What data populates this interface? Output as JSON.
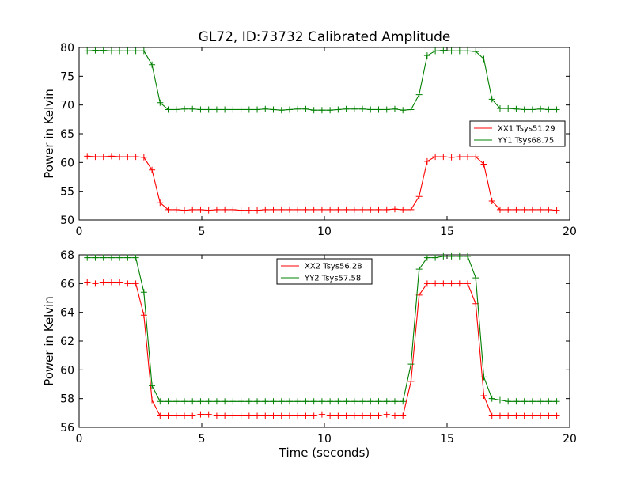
{
  "figure": {
    "title": "GL72, ID:73732 Calibrated Amplitude"
  },
  "chart_data": [
    {
      "type": "line",
      "title": "GL72, ID:73732 Calibrated Amplitude",
      "xlabel": "",
      "ylabel": "Power in Kelvin",
      "xlim": [
        0,
        20
      ],
      "ylim": [
        50,
        80
      ],
      "xticks": [
        0,
        5,
        10,
        15,
        20
      ],
      "yticks": [
        50,
        55,
        60,
        65,
        70,
        75,
        80
      ],
      "grid": false,
      "legend": "right",
      "x": [
        0.33,
        0.66,
        0.99,
        1.32,
        1.65,
        1.98,
        2.31,
        2.64,
        2.97,
        3.3,
        3.63,
        3.96,
        4.29,
        4.62,
        4.95,
        5.28,
        5.61,
        5.94,
        6.27,
        6.6,
        6.93,
        7.26,
        7.59,
        7.92,
        8.25,
        8.58,
        8.91,
        9.24,
        9.57,
        9.9,
        10.23,
        10.56,
        10.89,
        11.22,
        11.55,
        11.88,
        12.21,
        12.54,
        12.87,
        13.2,
        13.53,
        13.86,
        14.19,
        14.52,
        14.85,
        15.18,
        15.51,
        15.84,
        16.17,
        16.5,
        16.83,
        17.16,
        17.49,
        17.82,
        18.15,
        18.48,
        18.81,
        19.14,
        19.47
      ],
      "series": [
        {
          "name": "XX1 Tsys51.29",
          "color": "#ff0000",
          "values": [
            61.1,
            61.0,
            61.0,
            61.1,
            61.0,
            61.0,
            61.0,
            60.9,
            58.7,
            53.0,
            51.8,
            51.8,
            51.7,
            51.8,
            51.8,
            51.7,
            51.8,
            51.8,
            51.8,
            51.7,
            51.7,
            51.7,
            51.8,
            51.8,
            51.8,
            51.8,
            51.8,
            51.8,
            51.8,
            51.8,
            51.8,
            51.8,
            51.8,
            51.8,
            51.8,
            51.8,
            51.8,
            51.8,
            51.9,
            51.8,
            51.8,
            54.1,
            60.2,
            61.0,
            61.0,
            60.9,
            61.0,
            61.0,
            61.0,
            59.7,
            53.3,
            51.8,
            51.8,
            51.8,
            51.8,
            51.8,
            51.8,
            51.8,
            51.7
          ]
        },
        {
          "name": "YY1 Tsys68.75",
          "color": "#008000",
          "values": [
            79.4,
            79.5,
            79.5,
            79.4,
            79.4,
            79.4,
            79.4,
            79.4,
            77.0,
            70.4,
            69.2,
            69.2,
            69.3,
            69.3,
            69.2,
            69.2,
            69.2,
            69.2,
            69.2,
            69.2,
            69.2,
            69.2,
            69.3,
            69.2,
            69.1,
            69.2,
            69.3,
            69.3,
            69.1,
            69.1,
            69.1,
            69.2,
            69.3,
            69.3,
            69.3,
            69.2,
            69.2,
            69.2,
            69.3,
            69.1,
            69.2,
            71.8,
            78.6,
            79.4,
            79.5,
            79.4,
            79.4,
            79.4,
            79.3,
            78.0,
            71.0,
            69.4,
            69.4,
            69.3,
            69.2,
            69.2,
            69.3,
            69.2,
            69.2
          ]
        }
      ]
    },
    {
      "type": "line",
      "title": "",
      "xlabel": "Time (seconds)",
      "ylabel": "Power in Kelvin",
      "xlim": [
        0,
        20
      ],
      "ylim": [
        56,
        68
      ],
      "xticks": [
        0,
        5,
        10,
        15,
        20
      ],
      "yticks": [
        56,
        58,
        60,
        62,
        64,
        66,
        68
      ],
      "grid": false,
      "legend": "top-center",
      "x": [
        0.33,
        0.66,
        0.99,
        1.32,
        1.65,
        1.98,
        2.31,
        2.64,
        2.97,
        3.3,
        3.63,
        3.96,
        4.29,
        4.62,
        4.95,
        5.28,
        5.61,
        5.94,
        6.27,
        6.6,
        6.93,
        7.26,
        7.59,
        7.92,
        8.25,
        8.58,
        8.91,
        9.24,
        9.57,
        9.9,
        10.23,
        10.56,
        10.89,
        11.22,
        11.55,
        11.88,
        12.21,
        12.54,
        12.87,
        13.2,
        13.53,
        13.86,
        14.19,
        14.52,
        14.85,
        15.18,
        15.51,
        15.84,
        16.17,
        16.5,
        16.83,
        17.16,
        17.49,
        17.82,
        18.15,
        18.48,
        18.81,
        19.14,
        19.47
      ],
      "series": [
        {
          "name": "XX2 Tsys56.28",
          "color": "#ff0000",
          "values": [
            66.1,
            66.0,
            66.1,
            66.1,
            66.1,
            66.0,
            66.0,
            63.8,
            57.9,
            56.8,
            56.8,
            56.8,
            56.8,
            56.8,
            56.9,
            56.9,
            56.8,
            56.8,
            56.8,
            56.8,
            56.8,
            56.8,
            56.8,
            56.8,
            56.8,
            56.8,
            56.8,
            56.8,
            56.8,
            56.9,
            56.8,
            56.8,
            56.8,
            56.8,
            56.8,
            56.8,
            56.8,
            56.9,
            56.8,
            56.8,
            59.2,
            65.2,
            66.0,
            66.0,
            66.0,
            66.0,
            66.0,
            66.0,
            64.6,
            58.2,
            56.8,
            56.8,
            56.8,
            56.8,
            56.8,
            56.8,
            56.8,
            56.8,
            56.8
          ]
        },
        {
          "name": "YY2 Tsys57.58",
          "color": "#008000",
          "values": [
            67.8,
            67.8,
            67.8,
            67.8,
            67.8,
            67.8,
            67.8,
            65.4,
            58.9,
            57.8,
            57.8,
            57.8,
            57.8,
            57.8,
            57.8,
            57.8,
            57.8,
            57.8,
            57.8,
            57.8,
            57.8,
            57.8,
            57.8,
            57.8,
            57.8,
            57.8,
            57.8,
            57.8,
            57.8,
            57.8,
            57.8,
            57.8,
            57.8,
            57.8,
            57.8,
            57.8,
            57.8,
            57.8,
            57.8,
            57.8,
            60.4,
            67.0,
            67.8,
            67.8,
            67.9,
            67.9,
            67.9,
            67.9,
            66.4,
            59.5,
            58.0,
            57.9,
            57.8,
            57.8,
            57.8,
            57.8,
            57.8,
            57.8,
            57.8
          ]
        }
      ]
    }
  ]
}
